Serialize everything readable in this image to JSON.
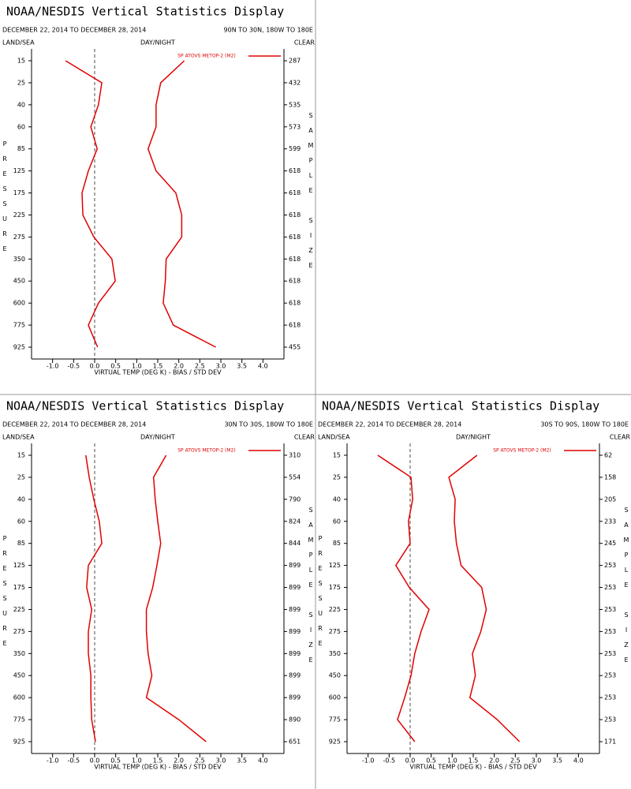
{
  "chart_data": [
    {
      "type": "line",
      "title": "NOAA/NESDIS Vertical Statistics Display",
      "subtitle": "DECEMBER 22, 2014 TO DECEMBER 28, 2014",
      "region": "90N TO 30N, 180W TO 180E",
      "left_header": "LAND/SEA",
      "center_header": "DAY/NIGHT",
      "right_header": "CLEAR",
      "y_label": "PRESSURE",
      "y2_label": "SAMPLE SIZE",
      "x_label": "VIRTUAL TEMP (DEG K) - BIAS / STD DEV",
      "categories": [
        15,
        25,
        40,
        60,
        85,
        125,
        175,
        225,
        275,
        350,
        450,
        600,
        775,
        925
      ],
      "sample_size": [
        287,
        432,
        535,
        573,
        599,
        618,
        618,
        618,
        618,
        618,
        618,
        618,
        618,
        455
      ],
      "series": [
        {
          "name": "SP ATOVS METOP-2 (M2)",
          "color": "#e00000",
          "values": [
            -0.69,
            0.17,
            0.09,
            -0.09,
            0.06,
            -0.15,
            -0.3,
            -0.28,
            -0.02,
            0.41,
            0.49,
            0.09,
            -0.15,
            0.07
          ],
          "std_dev": [
            2.13,
            1.57,
            1.46,
            1.46,
            1.27,
            1.46,
            1.93,
            2.07,
            2.07,
            1.7,
            1.68,
            1.63,
            1.87,
            2.88
          ]
        }
      ],
      "xlim": [
        -1.5,
        4.5
      ],
      "xticks": [
        {
          "value": -1,
          "label": "-1.0"
        },
        {
          "value": -0.5,
          "label": "-0.5"
        },
        {
          "value": 0,
          "label": "0.0"
        },
        0.5,
        {
          "value": 1,
          "label": "1.0"
        },
        1.5,
        {
          "value": 2,
          "label": "2.0"
        },
        2.5,
        {
          "value": 3,
          "label": "3.0"
        },
        3.5,
        {
          "value": 4,
          "label": "4.0"
        }
      ]
    },
    {
      "type": "line",
      "title": "NOAA/NESDIS Vertical Statistics Display",
      "subtitle": "DECEMBER 22, 2014 TO DECEMBER 28, 2014",
      "region": "30N TO 30S, 180W TO 180E",
      "left_header": "LAND/SEA",
      "center_header": "DAY/NIGHT",
      "right_header": "CLEAR",
      "y_label": "PRESSURE",
      "y2_label": "SAMPLE SIZE",
      "x_label": "VIRTUAL TEMP (DEG K) - BIAS / STD DEV",
      "categories": [
        15,
        25,
        40,
        60,
        85,
        125,
        175,
        225,
        275,
        350,
        450,
        600,
        775,
        925
      ],
      "sample_size": [
        310,
        554,
        790,
        824,
        844,
        899,
        899,
        899,
        899,
        899,
        899,
        899,
        890,
        651
      ],
      "series": [
        {
          "name": "SP ATOVS METOP-2 (M2)",
          "color": "#e00000",
          "values": [
            -0.21,
            -0.13,
            -0.02,
            0.11,
            0.17,
            -0.15,
            -0.19,
            -0.07,
            -0.15,
            -0.15,
            -0.09,
            -0.09,
            -0.07,
            0.02
          ],
          "std_dev": [
            1.7,
            1.4,
            1.44,
            1.5,
            1.57,
            1.48,
            1.38,
            1.23,
            1.23,
            1.27,
            1.36,
            1.23,
            2.0,
            2.65
          ]
        }
      ],
      "xlim": [
        -1.5,
        4.5
      ],
      "xticks": [
        {
          "value": -1,
          "label": "-1.0"
        },
        {
          "value": -0.5,
          "label": "-0.5"
        },
        {
          "value": 0,
          "label": "0.0"
        },
        0.5,
        {
          "value": 1,
          "label": "1.0"
        },
        1.5,
        {
          "value": 2,
          "label": "2.0"
        },
        2.5,
        {
          "value": 3,
          "label": "3.0"
        },
        3.5,
        {
          "value": 4,
          "label": "4.0"
        }
      ]
    },
    {
      "type": "line",
      "title": "NOAA/NESDIS Vertical Statistics Display",
      "subtitle": "DECEMBER 22, 2014 TO DECEMBER 28, 2014",
      "region": "30S TO 90S, 180W TO 180E",
      "left_header": "LAND/SEA",
      "center_header": "DAY/NIGHT",
      "right_header": "CLEAR",
      "y_label": "PRESSURE",
      "y2_label": "SAMPLE SIZE",
      "x_label": "VIRTUAL TEMP (DEG K) - BIAS / STD DEV",
      "categories": [
        15,
        25,
        40,
        60,
        85,
        125,
        175,
        225,
        275,
        350,
        450,
        600,
        775,
        925
      ],
      "sample_size": [
        62,
        158,
        205,
        233,
        245,
        253,
        253,
        253,
        253,
        253,
        253,
        253,
        253,
        171
      ],
      "series": [
        {
          "name": "SP ATOVS METOP-2 (M2)",
          "color": "#e00000",
          "values": [
            -0.77,
            0.02,
            0.06,
            -0.04,
            0,
            -0.34,
            -0.02,
            0.45,
            0.26,
            0.11,
            0.02,
            -0.13,
            -0.3,
            0.11
          ],
          "std_dev": [
            1.59,
            0.92,
            1.07,
            1.05,
            1.1,
            1.21,
            1.7,
            1.81,
            1.68,
            1.48,
            1.55,
            1.42,
            2.07,
            2.6
          ]
        }
      ],
      "xlim": [
        -1.5,
        4.5
      ],
      "xticks": [
        {
          "value": -1,
          "label": "-1.0"
        },
        {
          "value": -0.5,
          "label": "-0.5"
        },
        {
          "value": 0,
          "label": "0.0"
        },
        0.5,
        {
          "value": 1,
          "label": "1.0"
        },
        1.5,
        {
          "value": 2,
          "label": "2.0"
        },
        2.5,
        {
          "value": 3,
          "label": "3.0"
        },
        3.5,
        {
          "value": 4,
          "label": "4.0"
        }
      ]
    }
  ]
}
